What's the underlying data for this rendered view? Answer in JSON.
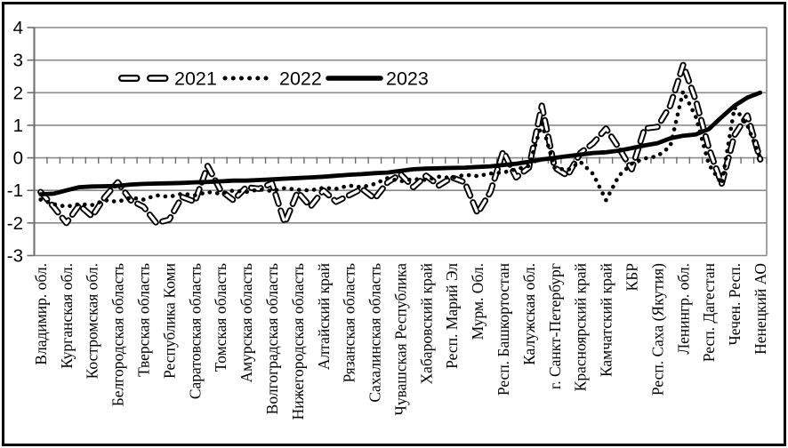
{
  "figure": {
    "background": "#ffffff",
    "frame_color": "#000000"
  },
  "legend": {
    "position": "top-inside",
    "items": [
      {
        "label": "2021",
        "marker": "dashed-hollow-capsules"
      },
      {
        "label": "2022",
        "marker": "dotted"
      },
      {
        "label": "2023",
        "marker": "solid-thick"
      }
    ]
  },
  "chart_data": {
    "type": "line",
    "title": "",
    "xlabel": "",
    "ylabel": "",
    "ylim": [
      -3,
      4
    ],
    "yticks": [
      4,
      3,
      2,
      1,
      0,
      -1,
      -2,
      -3
    ],
    "grid": true,
    "n_points": 57,
    "x_label_step": 2,
    "x_labels": [
      "Владимир. обл.",
      "Курганская обл.",
      "Костромская обл.",
      "Белгородская область",
      "Тверская область",
      "Республика Коми",
      "Саратовская область",
      "Томская область",
      "Амурская область",
      "Волгоградская область",
      "Нижегородская область",
      "Алтайский край",
      "Рязанская область",
      "Сахалинская область",
      "Чувашская Республика",
      "Хабаровский край",
      "Респ. Марий Эл",
      "Мурм. Обл.",
      "Респ. Башкортостан",
      "Калужская обл.",
      "г. Санкт-Петербург",
      "Красноярский край",
      "Камчатский край",
      "КБР",
      "Респ. Саха (Якутия)",
      "Ленингр. обл.",
      "Респ. Дагестан",
      "Чечен. Респ.",
      "Ненецкий АО"
    ],
    "series": [
      {
        "name": "2021",
        "style": "dashed",
        "color": "#000000",
        "values": [
          -1.05,
          -1.5,
          -2.0,
          -1.45,
          -1.8,
          -1.2,
          -0.75,
          -1.3,
          -1.5,
          -2.0,
          -1.9,
          -1.2,
          -1.35,
          -0.25,
          -1.0,
          -1.3,
          -0.9,
          -0.95,
          -0.78,
          -2.0,
          -1.05,
          -1.5,
          -1.0,
          -1.35,
          -1.15,
          -0.95,
          -1.25,
          -0.75,
          -0.5,
          -0.9,
          -0.55,
          -0.85,
          -0.6,
          -0.75,
          -1.7,
          -1.05,
          0.2,
          -0.6,
          -0.3,
          1.6,
          -0.3,
          -0.55,
          0.15,
          0.45,
          0.9,
          0.3,
          -0.35,
          0.9,
          0.95,
          1.6,
          2.85,
          1.75,
          0.3,
          -0.8,
          0.7,
          1.3,
          -0.05
        ]
      },
      {
        "name": "2022",
        "style": "dotted",
        "color": "#000000",
        "values": [
          -1.28,
          -1.42,
          -1.5,
          -1.42,
          -1.45,
          -1.3,
          -1.35,
          -1.22,
          -1.28,
          -1.15,
          -1.2,
          -1.1,
          -1.15,
          -1.05,
          -1.1,
          -1.0,
          -1.05,
          -0.97,
          -1.02,
          -0.93,
          -0.98,
          -1.0,
          -0.92,
          -0.95,
          -0.85,
          -0.9,
          -0.8,
          -0.62,
          -0.72,
          -0.65,
          -0.68,
          -0.58,
          -0.62,
          -0.52,
          -0.56,
          -0.48,
          -0.45,
          -0.35,
          -0.25,
          1.05,
          -0.3,
          -0.38,
          -0.12,
          -0.5,
          -1.3,
          -0.55,
          -0.18,
          -0.02,
          0.05,
          0.35,
          2.05,
          1.25,
          -0.2,
          -0.8,
          1.55,
          1.0,
          0.0
        ]
      },
      {
        "name": "2023",
        "style": "solid",
        "color": "#000000",
        "values": [
          -1.12,
          -1.1,
          -1.0,
          -0.9,
          -0.88,
          -0.87,
          -0.86,
          -0.82,
          -0.8,
          -0.79,
          -0.78,
          -0.77,
          -0.75,
          -0.74,
          -0.72,
          -0.7,
          -0.7,
          -0.68,
          -0.66,
          -0.64,
          -0.62,
          -0.6,
          -0.58,
          -0.55,
          -0.52,
          -0.5,
          -0.47,
          -0.45,
          -0.4,
          -0.35,
          -0.33,
          -0.32,
          -0.31,
          -0.3,
          -0.28,
          -0.26,
          -0.22,
          -0.18,
          -0.12,
          -0.05,
          0.0,
          0.05,
          0.1,
          0.15,
          0.17,
          0.22,
          0.3,
          0.38,
          0.45,
          0.6,
          0.68,
          0.72,
          0.88,
          1.25,
          1.6,
          1.85,
          2.0
        ]
      }
    ],
    "colors": {
      "series": "#000000",
      "grid": "#8a8a8a",
      "axis": "#6b6b6b",
      "text": "#000000",
      "background": "#ffffff"
    }
  }
}
